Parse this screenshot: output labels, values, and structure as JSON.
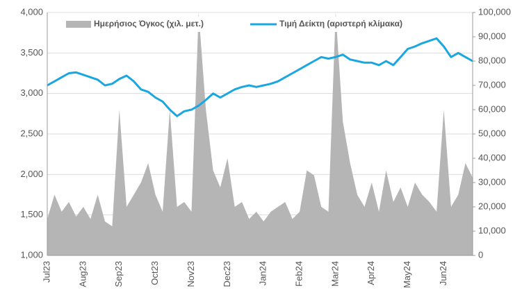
{
  "chart_data": {
    "type": "line",
    "categories": [
      "Jul23",
      null,
      null,
      null,
      null,
      "Aug23",
      null,
      null,
      null,
      null,
      "Sep23",
      null,
      null,
      null,
      null,
      "Oct23",
      null,
      null,
      null,
      null,
      "Nov23",
      null,
      null,
      null,
      null,
      "Dec23",
      null,
      null,
      null,
      null,
      "Jan24",
      null,
      null,
      null,
      null,
      "Feb24",
      null,
      null,
      null,
      null,
      "Mar24",
      null,
      null,
      null,
      null,
      "Apr24",
      null,
      null,
      null,
      null,
      "May24",
      null,
      null,
      null,
      null,
      "Jun24",
      null,
      null,
      null,
      null
    ],
    "series": [
      {
        "name": "Ημερήσιος Όγκος (χιλ. μετ.)",
        "color": "#b5b5b5",
        "axis": "y2",
        "kind": "area",
        "values": [
          15000,
          25000,
          18000,
          22000,
          16000,
          20000,
          15000,
          25000,
          14000,
          12000,
          60000,
          20000,
          25000,
          30000,
          38000,
          25000,
          18000,
          60000,
          20000,
          22000,
          18000,
          100000,
          60000,
          35000,
          28000,
          40000,
          20000,
          22000,
          15000,
          18000,
          14000,
          18000,
          20000,
          22000,
          15000,
          18000,
          35000,
          33000,
          20000,
          18000,
          100000,
          55000,
          38000,
          25000,
          20000,
          30000,
          18000,
          35000,
          22000,
          28000,
          20000,
          30000,
          25000,
          22000,
          18000,
          60000,
          20000,
          25000,
          38000,
          32000
        ]
      },
      {
        "name": "Τιμή Δείκτη (αριστερή κλίμακα)",
        "color": "#1aa7e0",
        "kind": "line",
        "values": [
          3100,
          3150,
          3200,
          3250,
          3260,
          3230,
          3200,
          3170,
          3100,
          3120,
          3180,
          3220,
          3150,
          3050,
          3020,
          2950,
          2900,
          2800,
          2720,
          2780,
          2800,
          2850,
          2920,
          3000,
          2950,
          3000,
          3050,
          3080,
          3100,
          3080,
          3100,
          3120,
          3150,
          3200,
          3250,
          3300,
          3350,
          3400,
          3450,
          3430,
          3450,
          3480,
          3420,
          3400,
          3380,
          3380,
          3350,
          3400,
          3350,
          3450,
          3550,
          3580,
          3620,
          3650,
          3680,
          3580,
          3450,
          3500,
          3450,
          3400
        ]
      }
    ],
    "ylim": [
      1000,
      4000
    ],
    "yticks": [
      {
        "value": 1000,
        "label": "1,000"
      },
      {
        "value": 1500,
        "label": "1,500"
      },
      {
        "value": 2000,
        "label": "2,000"
      },
      {
        "value": 2500,
        "label": "2,500"
      },
      {
        "value": 3000,
        "label": "3,000"
      },
      {
        "value": 3500,
        "label": "3,500"
      },
      {
        "value": 4000,
        "label": "4,000"
      }
    ],
    "y2lim": [
      0,
      100000
    ],
    "y2ticks": [
      0,
      {
        "value": 10000,
        "label": "10,000"
      },
      {
        "value": 20000,
        "label": "20,000"
      },
      {
        "value": 30000,
        "label": "30,000"
      },
      {
        "value": 40000,
        "label": "40,000"
      },
      {
        "value": 50000,
        "label": "50,000"
      },
      {
        "value": 60000,
        "label": "60,000"
      },
      {
        "value": 70000,
        "label": "70,000"
      },
      {
        "value": 80000,
        "label": "80,000"
      },
      {
        "value": 90000,
        "label": "90,000"
      },
      {
        "value": 100000,
        "label": "100,000"
      }
    ],
    "grid": true,
    "legend": "top"
  }
}
